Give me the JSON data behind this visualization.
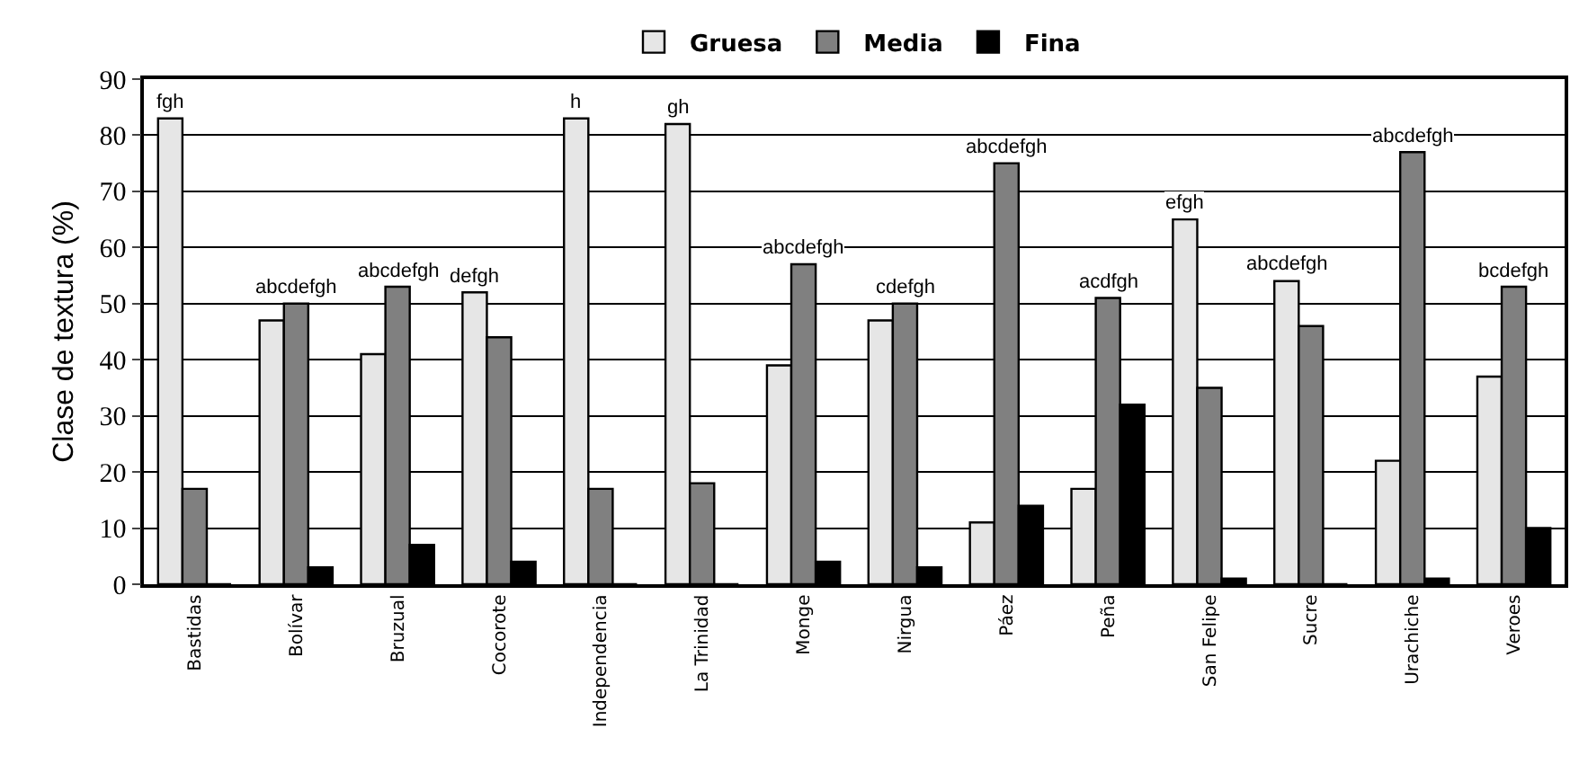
{
  "chart_data": {
    "type": "bar",
    "ylabel": "Clase de textura (%)",
    "categories": [
      "Bastidas",
      "Bolívar",
      "Bruzual",
      "Cocorote",
      "Independencia",
      "La Trinidad",
      "Monge",
      "Nirgua",
      "Páez",
      "Peña",
      "San Felipe",
      "Sucre",
      "Urachiche",
      "Veroes"
    ],
    "series": [
      {
        "name": "Gruesa",
        "color": "#e6e6e6",
        "values": [
          83,
          47,
          41,
          52,
          83,
          82,
          39,
          47,
          11,
          17,
          65,
          54,
          22,
          37
        ]
      },
      {
        "name": "Media",
        "color": "#808080",
        "values": [
          17,
          50,
          53,
          44,
          17,
          18,
          57,
          50,
          75,
          51,
          35,
          46,
          77,
          53
        ]
      },
      {
        "name": "Fina",
        "color": "#000000",
        "values": [
          0,
          3,
          7,
          4,
          0,
          0,
          4,
          3,
          14,
          32,
          1,
          0,
          1,
          10
        ]
      }
    ],
    "annotations": [
      "fgh",
      "abcdefgh",
      "abcdefgh",
      "defgh",
      "h",
      "gh",
      "abcdefgh",
      "cdefgh",
      "abcdefgh",
      "acdfgh",
      "efgh",
      "abcdefgh",
      "abcdefgh",
      "bcdefgh"
    ],
    "ylim": [
      0,
      90
    ],
    "yticks": [
      0,
      10,
      20,
      30,
      40,
      50,
      60,
      70,
      80,
      90
    ],
    "grid": "y",
    "legend": "top"
  }
}
